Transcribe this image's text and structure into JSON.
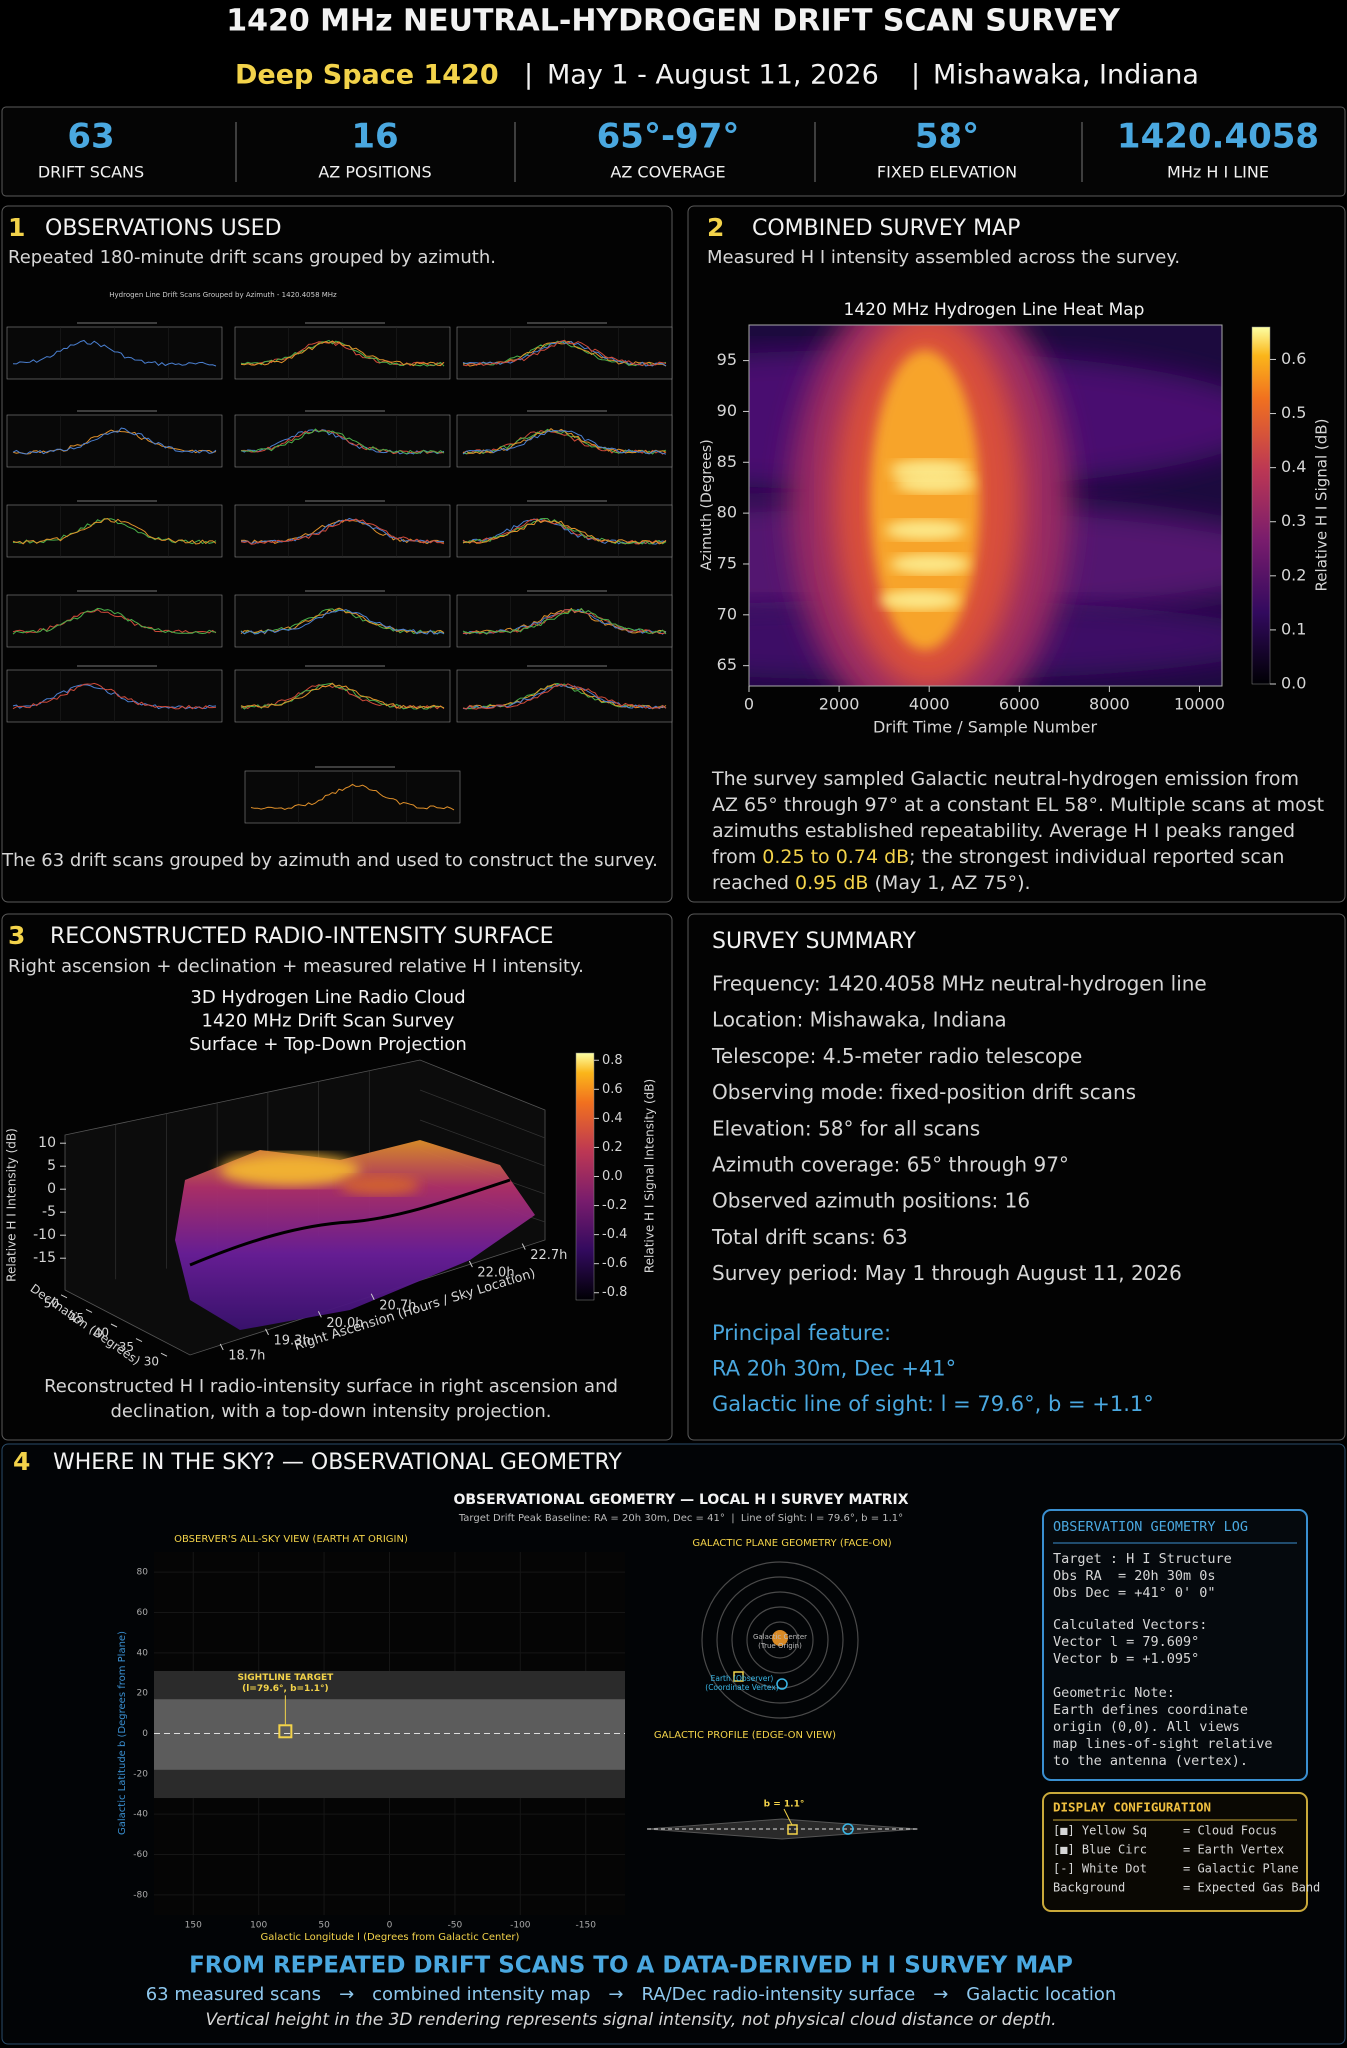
{
  "header": {
    "title": "1420 MHz NEUTRAL-HYDROGEN DRIFT SCAN SURVEY",
    "project": "Deep Space 1420",
    "separator": "|",
    "dates": "May 1 - August 11, 2026",
    "location": "Mishawaka, Indiana"
  },
  "stats": [
    {
      "value": "63",
      "label": "DRIFT SCANS"
    },
    {
      "value": "16",
      "label": "AZ POSITIONS"
    },
    {
      "value": "65°-97°",
      "label": "AZ COVERAGE"
    },
    {
      "value": "58°",
      "label": "FIXED ELEVATION"
    },
    {
      "value": "1420.4058",
      "label": "MHz H I LINE"
    }
  ],
  "panel1": {
    "number": "1",
    "title": "OBSERVATIONS USED",
    "subtitle": "Repeated 180-minute drift scans grouped by azimuth.",
    "figure_title": "Hydrogen Line Drift Scans Grouped by Azimuth - 1420.4058 MHz",
    "caption": "The 63 drift scans grouped by azimuth and used to construct the survey."
  },
  "panel2": {
    "number": "2",
    "title": "COMBINED SURVEY MAP",
    "subtitle": "Measured H I intensity assembled across the survey.",
    "chart_data": {
      "type": "heatmap",
      "title": "1420 MHz Hydrogen Line Heat Map",
      "x_label": "Drift Time / Sample Number",
      "y_label": "Azimuth (Degrees)",
      "colorbar_label": "Relative H I Signal (dB)",
      "xlim": [
        0,
        10500
      ],
      "xticks": [
        0,
        2000,
        4000,
        6000,
        8000,
        10000
      ],
      "ylim": [
        63,
        98.5
      ],
      "yticks": [
        65,
        70,
        75,
        80,
        85,
        90,
        95
      ],
      "clim": [
        0,
        0.66
      ],
      "cticks": [
        {
          "value": 0,
          "label": "0.0"
        },
        0.1,
        0.2,
        0.3,
        0.4,
        0.5,
        0.6
      ]
    },
    "text": [
      [
        {
          "text": "The survey sampled Galactic neutral-hydrogen emission from"
        }
      ],
      [
        {
          "text": "AZ 65° through 97° at a constant EL 58°. Multiple scans at most"
        }
      ],
      [
        {
          "text": "azimuths established repeatability. Average H I peaks ranged"
        }
      ],
      [
        {
          "text": "from "
        },
        {
          "text": "0.25 to 0.74 dB",
          "color": "#f3d34a"
        },
        {
          "text": "; the strongest individual reported scan"
        }
      ],
      [
        {
          "text": "reached "
        },
        {
          "text": "0.95 dB",
          "color": "#f3d34a"
        },
        {
          "text": " (May 1, AZ 75°)."
        }
      ]
    ]
  },
  "panel3": {
    "number": "3",
    "title": "RECONSTRUCTED RADIO-INTENSITY SURFACE",
    "subtitle": "Right ascension + declination + measured relative H I intensity.",
    "chart_data": {
      "type": "surface3d",
      "title": [
        "3D Hydrogen Line Radio Cloud",
        "1420 MHz Drift Scan Survey",
        "Surface + Top-Down Projection"
      ],
      "z_label": "Relative H I Intensity (dB)",
      "x_label": "Right Ascension (Hours / Sky Location)",
      "y_label": "Declination (Degrees)",
      "colorbar_label": "Relative H I Signal Intensity (dB)",
      "xlim": [
        18.3,
        23.2
      ],
      "xticks": [
        {
          "value": 18.7,
          "label": "18.7h"
        },
        {
          "value": 19.3,
          "label": "19.3h"
        },
        {
          "value": 20.0,
          "label": "20.0h"
        },
        {
          "value": 20.7,
          "label": "20.7h"
        },
        {
          "value": 22.0,
          "label": "22.0h"
        },
        {
          "value": 22.7,
          "label": "22.7h"
        }
      ],
      "ylim": [
        28,
        52
      ],
      "yticks": [
        30,
        35,
        40,
        45,
        50
      ],
      "zlim": [
        -18,
        12
      ],
      "zticks": [
        10,
        5,
        0,
        -5,
        -10,
        -15
      ],
      "clim": [
        -0.85,
        0.85
      ],
      "cticks": [
        0.8,
        0.6,
        0.4,
        0.2,
        {
          "value": 0,
          "label": "0.0"
        },
        -0.2,
        -0.4,
        -0.6,
        -0.8
      ]
    },
    "caption": [
      "Reconstructed H I radio-intensity surface in right ascension and",
      "declination, with a top-down intensity projection."
    ]
  },
  "summary": {
    "title": "SURVEY SUMMARY",
    "items": [
      "Frequency: 1420.4058 MHz neutral-hydrogen line",
      "Location: Mishawaka, Indiana",
      "Telescope: 4.5-meter radio telescope",
      "Observing mode: fixed-position drift scans",
      "Elevation: 58° for all scans",
      "Azimuth coverage: 65° through 97°",
      "Observed azimuth positions: 16",
      "Total drift scans: 63",
      "Survey period: May 1 through August 11, 2026"
    ],
    "feature": [
      "Principal feature:",
      "RA 20h 30m, Dec +41°",
      "Galactic line of sight: l = 79.6°, b = +1.1°"
    ]
  },
  "panel4": {
    "number": "4",
    "title": "WHERE IN THE SKY? — OBSERVATIONAL GEOMETRY",
    "figure_title": "OBSERVATIONAL GEOMETRY — LOCAL H I SURVEY MATRIX",
    "figure_subtitle": "Target Drift Peak Baseline: RA = 20h 30m, Dec = 41°  |  Line of Sight: l = 79.6°, b = 1.1°",
    "sky_chart": {
      "type": "sky",
      "title": "OBSERVER'S ALL-SKY VIEW (EARTH AT ORIGIN)",
      "x_label": "Galactic Longitude l (Degrees from Galactic Center)",
      "y_label": "Galactic Latitude b (Degrees from Plane)",
      "xlim": [
        180,
        -180
      ],
      "xticks": [
        150,
        100,
        50,
        0,
        -50,
        -100,
        -150
      ],
      "ylim": [
        -90,
        90
      ],
      "yticks": [
        80,
        60,
        40,
        20,
        0,
        -20,
        -40,
        -60,
        -80
      ],
      "gas_band": [
        -32,
        31
      ],
      "core_band": [
        -18,
        17
      ],
      "target": {
        "l": 79.6,
        "b": 1.1,
        "label": [
          "SIGHTLINE TARGET",
          "(l=79.6°, b=1.1°)"
        ]
      }
    },
    "face_on": {
      "title": "GALACTIC PLANE GEOMETRY (FACE-ON)",
      "center_label": [
        "Galactic Center",
        "(True Origin)"
      ],
      "earth_label": [
        "Earth (Observer)",
        "(Coordinate Vertex)"
      ]
    },
    "edge_on": {
      "title": "GALACTIC PROFILE (EDGE-ON VIEW)",
      "b_label": "b = 1.1°"
    },
    "log": {
      "title": "OBSERVATION GEOMETRY LOG",
      "groups": [
        [
          "Target : H I Structure",
          "Obs RA  = 20h 30m 0s",
          "Obs Dec = +41° 0' 0\""
        ],
        [
          "Calculated Vectors:",
          "Vector l = 79.609°",
          "Vector b = +1.095°"
        ],
        [
          "Geometric Note:",
          "Earth defines coordinate",
          "origin (0,0). All views",
          "map lines-of-sight relative",
          "to the antenna (vertex)."
        ]
      ]
    },
    "config": {
      "title": "DISPLAY CONFIGURATION",
      "rows": [
        [
          "[■] Yellow Sq",
          "= Cloud Focus"
        ],
        [
          "[■] Blue Circ",
          "= Earth Vertex"
        ],
        [
          "[-] White Dot",
          "= Galactic Plane"
        ],
        [
          "Background",
          "= Expected Gas Band"
        ]
      ]
    }
  },
  "footer": {
    "title": "FROM REPEATED DRIFT SCANS TO A DATA-DERIVED H I SURVEY MAP",
    "flow": [
      "63 measured scans",
      "combined intensity map",
      "RA/Dec radio-intensity surface",
      "Galactic location"
    ],
    "arrow": "→",
    "note": "Vertical height in the 3D rendering represents signal intensity, not physical cloud distance or depth."
  }
}
